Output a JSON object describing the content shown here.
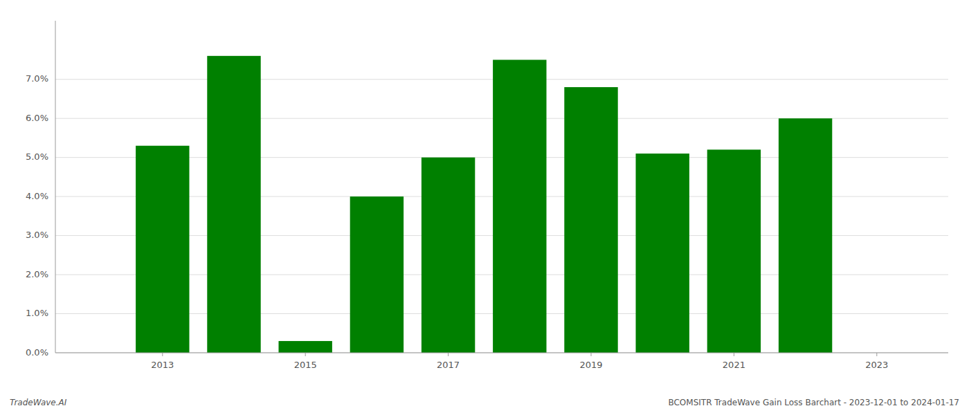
{
  "chart_data": {
    "type": "bar",
    "x": [
      2013,
      2014,
      2015,
      2016,
      2017,
      2018,
      2019,
      2020,
      2021,
      2022
    ],
    "values": [
      0.053,
      0.076,
      0.003,
      0.04,
      0.05,
      0.075,
      0.068,
      0.051,
      0.052,
      0.06
    ],
    "color": "#008000",
    "xlim": [
      2011.5,
      2024.0
    ],
    "xticks": [
      2013,
      2015,
      2017,
      2019,
      2021,
      2023
    ],
    "ylim": [
      0,
      0.085
    ],
    "yticks": [
      {
        "value": 0.0,
        "label": "0.0%"
      },
      {
        "value": 0.01,
        "label": "1.0%"
      },
      {
        "value": 0.02,
        "label": "2.0%"
      },
      {
        "value": 0.03,
        "label": "3.0%"
      },
      {
        "value": 0.04,
        "label": "4.0%"
      },
      {
        "value": 0.05,
        "label": "5.0%"
      },
      {
        "value": 0.06,
        "label": "6.0%"
      },
      {
        "value": 0.07,
        "label": "7.0%"
      }
    ],
    "grid": true,
    "annotations": [
      "TradeWave.AI",
      "BCOMSITR TradeWave Gain Loss Barchart - 2023-12-01 to 2024-01-17"
    ]
  }
}
